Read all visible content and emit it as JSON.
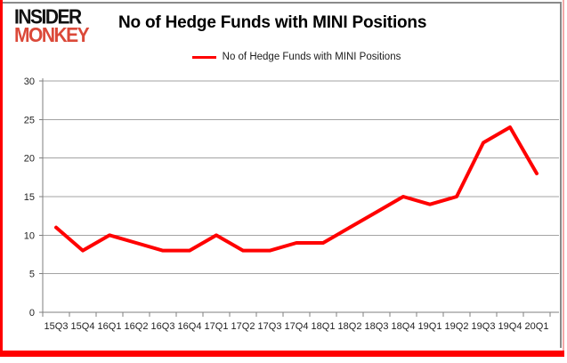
{
  "logo": {
    "line1": "INSIDER",
    "line2": "MONKEY"
  },
  "header": {
    "title": "No of Hedge Funds with MINI Positions"
  },
  "legend": {
    "label": "No of Hedge Funds with MINI Positions"
  },
  "chart_data": {
    "type": "line",
    "title": "No of Hedge Funds with MINI Positions",
    "categories": [
      "15Q3",
      "15Q4",
      "16Q1",
      "16Q2",
      "16Q3",
      "16Q4",
      "17Q1",
      "17Q2",
      "17Q3",
      "17Q4",
      "18Q1",
      "18Q2",
      "18Q3",
      "18Q4",
      "19Q1",
      "19Q2",
      "19Q3",
      "19Q4",
      "20Q1"
    ],
    "series": [
      {
        "name": "No of Hedge Funds with MINI Positions",
        "values": [
          11,
          8,
          10,
          9,
          8,
          8,
          10,
          8,
          8,
          9,
          9,
          11,
          13,
          15,
          14,
          15,
          22,
          24,
          18
        ]
      }
    ],
    "ylim": [
      0,
      30
    ],
    "yticks": [
      0,
      5,
      10,
      15,
      20,
      25,
      30
    ],
    "grid": true,
    "legend_position": "top"
  },
  "colors": {
    "line": "#ff0000",
    "grid": "#a3a3a3",
    "axis": "#7f7f7f",
    "tick_label": "#1f1f1f",
    "border_red": "#ff0000",
    "border_pink": "#f4a9a9",
    "border_gray": "#8a8a8a",
    "logo_red": "#db4939"
  }
}
